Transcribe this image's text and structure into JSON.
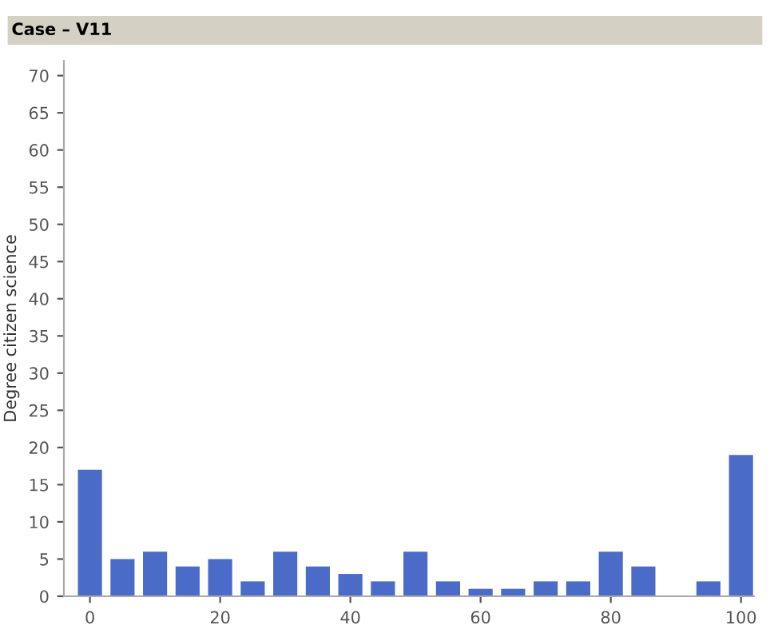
{
  "chart_data": {
    "type": "bar",
    "title": "Case – V11",
    "ylabel": "Degree citizen science",
    "x": [
      0,
      5,
      10,
      15,
      20,
      25,
      30,
      35,
      40,
      45,
      50,
      55,
      60,
      65,
      70,
      75,
      80,
      85,
      90,
      95,
      100
    ],
    "values": [
      17,
      5,
      6,
      4,
      5,
      2,
      6,
      4,
      3,
      2,
      6,
      2,
      1,
      1,
      2,
      2,
      6,
      4,
      0,
      2,
      19
    ],
    "color": "#4a6cc8",
    "xlim": [
      -4,
      102
    ],
    "xticks": [
      0,
      20,
      40,
      60,
      80,
      100
    ],
    "ylim": [
      0,
      72
    ],
    "yticks": [
      0,
      5,
      10,
      15,
      20,
      25,
      30,
      35,
      40,
      45,
      50,
      55,
      60,
      65,
      70
    ],
    "grid": false
  }
}
